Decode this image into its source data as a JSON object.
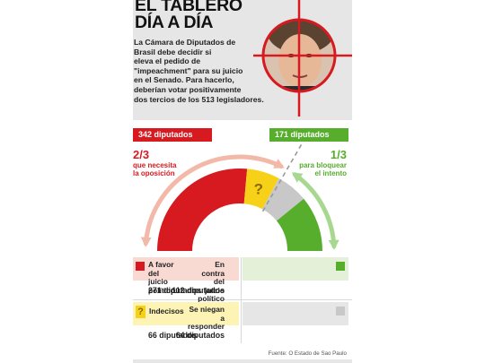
{
  "header": {
    "title": "EL TABLERO\nDÍA A DÍA",
    "intro": "La Cámara de Diputados de\nBrasil debe decidir si\neleva el pedido de\n\"impeachment\" para su juicio\nen el Senado. Para hacerlo,\ndeberían votar positivamente\ndos tercios de los 513 legisladores."
  },
  "threshold": {
    "opposition": {
      "label": "342 diputados",
      "fraction": "2/3",
      "caption": "que necesita\nla oposición",
      "color": "#d71920"
    },
    "block": {
      "label": "171 diputados",
      "fraction": "1/3",
      "caption": "para bloquear\nel intento",
      "color": "#57ad2c"
    }
  },
  "chart_data": {
    "type": "pie",
    "total": 513,
    "segments": [
      {
        "name": "A favor del juicio político",
        "value": 271,
        "color": "#d71920"
      },
      {
        "name": "Indecisos",
        "value": 66,
        "color": "#f7d117"
      },
      {
        "name": "Se niegan a responder",
        "value": 64,
        "color": "#c8c8c8"
      },
      {
        "name": "En contra del juicio político",
        "value": 112,
        "color": "#57ad2c"
      }
    ]
  },
  "legend": {
    "favor": {
      "label": "A favor del\njuicio político",
      "count": "271 diputados",
      "color": "#d71920",
      "bg": "#f8dad3"
    },
    "contra": {
      "label": "En contra del\njuicio político",
      "count": "112 diputados",
      "color": "#57ad2c",
      "bg": "#e4f0d8"
    },
    "indecisos": {
      "label": "Indecisos",
      "count": "66 diputados",
      "color": "#f7d117",
      "bg": "#fdf3b4",
      "icon": "question-mark-icon"
    },
    "niegan": {
      "label": "Se niegan\na responder",
      "count": "64 diputados",
      "color": "#c8c8c8",
      "bg": "#e6e6e6"
    }
  },
  "source": "Fuente: O Estado de Sao Paulo"
}
